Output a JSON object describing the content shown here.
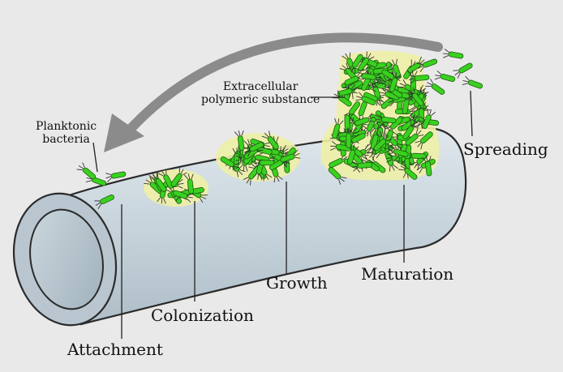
{
  "labels": {
    "planktonic": [
      "Planktonic",
      "bacteria"
    ],
    "eps": [
      "Extracellular",
      "polymeric substance"
    ],
    "spreading": "Spreading",
    "attachment": "Attachment",
    "colonization": "Colonization",
    "growth": "Growth",
    "maturation": "Maturation"
  },
  "colors": {
    "background": "#e9e9e9",
    "pipe_fill": "#c9d6de",
    "pipe_outline": "#2b2b2b",
    "bacteria": "#39d11f",
    "eps_halo": "#eef0a6",
    "arrow": "#888888"
  },
  "icons": {
    "arrow": "curved-arrow-icon",
    "bacterium": "rod-bacterium-icon"
  }
}
